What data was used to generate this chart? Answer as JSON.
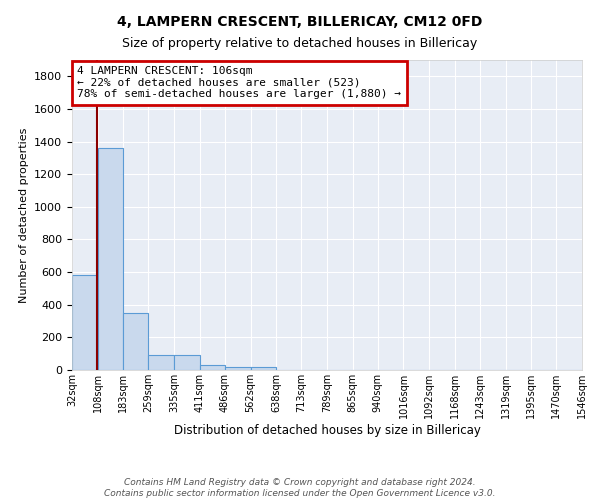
{
  "title": "4, LAMPERN CRESCENT, BILLERICAY, CM12 0FD",
  "subtitle": "Size of property relative to detached houses in Billericay",
  "xlabel": "Distribution of detached houses by size in Billericay",
  "ylabel": "Number of detached properties",
  "bin_labels": [
    "32sqm",
    "108sqm",
    "183sqm",
    "259sqm",
    "335sqm",
    "411sqm",
    "486sqm",
    "562sqm",
    "638sqm",
    "713sqm",
    "789sqm",
    "865sqm",
    "940sqm",
    "1016sqm",
    "1092sqm",
    "1168sqm",
    "1243sqm",
    "1319sqm",
    "1395sqm",
    "1470sqm",
    "1546sqm"
  ],
  "bin_edges": [
    32,
    108,
    183,
    259,
    335,
    411,
    486,
    562,
    638,
    713,
    789,
    865,
    940,
    1016,
    1092,
    1168,
    1243,
    1319,
    1395,
    1470,
    1546
  ],
  "bar_heights": [
    580,
    1360,
    350,
    95,
    95,
    30,
    20,
    20,
    0,
    0,
    0,
    0,
    0,
    0,
    0,
    0,
    0,
    0,
    0,
    0
  ],
  "bar_color": "#c9d9ed",
  "bar_edge_color": "#5b9bd5",
  "property_line_x": 106,
  "property_line_color": "#8b0000",
  "annotation_text": "4 LAMPERN CRESCENT: 106sqm\n← 22% of detached houses are smaller (523)\n78% of semi-detached houses are larger (1,880) →",
  "annotation_box_color": "#ffffff",
  "annotation_box_edge": "#cc0000",
  "ylim": [
    0,
    1900
  ],
  "yticks": [
    0,
    200,
    400,
    600,
    800,
    1000,
    1200,
    1400,
    1600,
    1800
  ],
  "bg_color": "#e8edf5",
  "footer_text": "Contains HM Land Registry data © Crown copyright and database right 2024.\nContains public sector information licensed under the Open Government Licence v3.0.",
  "title_fontsize": 10,
  "subtitle_fontsize": 9
}
